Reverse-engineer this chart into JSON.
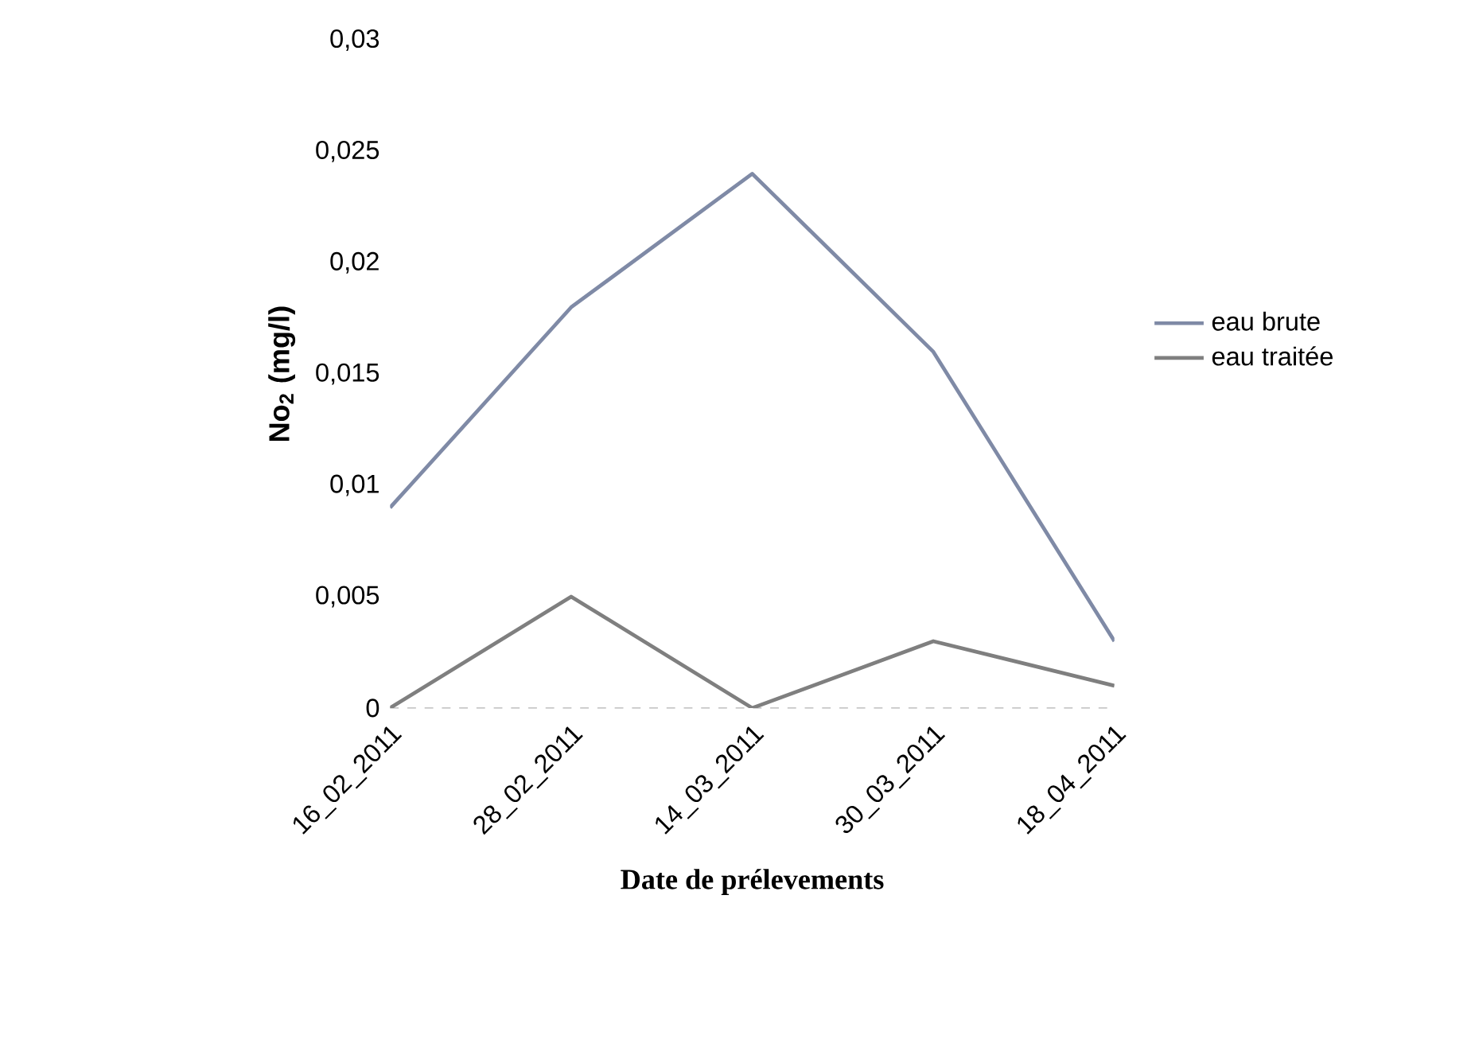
{
  "chart_data": {
    "type": "line",
    "xlabel": "Date de prélevements",
    "ylabel": "No$_{2}$  (mg/l)",
    "categories": [
      "16_02_2011",
      "28_02_2011",
      "14_03_2011",
      "30_03_2011",
      "18_04_2011"
    ],
    "series": [
      {
        "name": "eau brute",
        "color": "#7f8aa6",
        "values": [
          0.009,
          0.018,
          0.024,
          0.016,
          0.003
        ]
      },
      {
        "name": "eau traitée",
        "color": "#7f7f7f",
        "values": [
          0,
          0.005,
          0,
          0.003,
          0.001
        ]
      }
    ],
    "ylim": [
      0,
      0.03
    ],
    "yticks": [
      {
        "value": 0,
        "label": "0"
      },
      {
        "value": 0.005,
        "label": "0,005"
      },
      {
        "value": 0.01,
        "label": "0,01"
      },
      {
        "value": 0.015,
        "label": "0,015"
      },
      {
        "value": 0.02,
        "label": "0,02"
      },
      {
        "value": 0.025,
        "label": "0,025"
      },
      {
        "value": 0.03,
        "label": "0,03"
      }
    ],
    "legend": "right",
    "marker": "none",
    "line_style": "solid"
  }
}
